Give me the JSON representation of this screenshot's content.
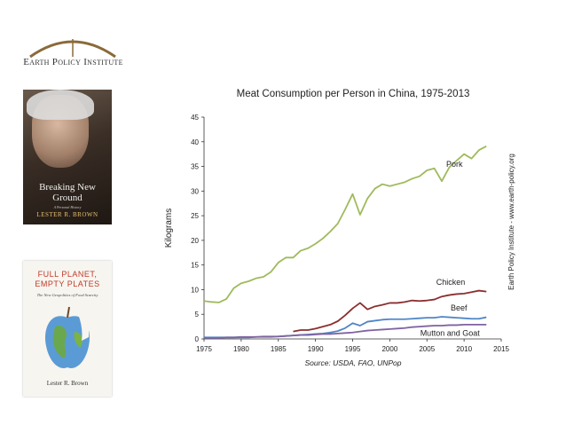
{
  "logo": {
    "text": "Earth Policy Institute"
  },
  "books": [
    {
      "title": "Breaking New Ground",
      "subtitle": "A Personal History",
      "author": "LESTER R. BROWN"
    },
    {
      "title": "FULL PLANET, EMPTY PLATES",
      "subtitle": "The New Geopolitics of Food Scarcity",
      "author": "Lester R. Brown"
    }
  ],
  "chart_data": {
    "type": "line",
    "title": "Meat Consumption per Person in China, 1975-2013",
    "ylabel": "Kilograms",
    "source": "Source: USDA, FAO, UNPop",
    "side_note": "Earth Policy Institute - www.earth-policy.org",
    "x": [
      1975,
      1976,
      1977,
      1978,
      1979,
      1980,
      1981,
      1982,
      1983,
      1984,
      1985,
      1986,
      1987,
      1988,
      1989,
      1990,
      1991,
      1992,
      1993,
      1994,
      1995,
      1996,
      1997,
      1998,
      1999,
      2000,
      2001,
      2002,
      2003,
      2004,
      2005,
      2006,
      2007,
      2008,
      2009,
      2010,
      2011,
      2012,
      2013
    ],
    "series": [
      {
        "name": "Pork",
        "color": "#9fba5c",
        "values": [
          7.7,
          7.5,
          7.4,
          8.1,
          10.3,
          11.3,
          11.7,
          12.3,
          12.6,
          13.6,
          15.5,
          16.5,
          16.5,
          17.9,
          18.4,
          19.3,
          20.4,
          21.8,
          23.4,
          26.3,
          29.4,
          25.2,
          28.5,
          30.5,
          31.4,
          31.0,
          31.4,
          31.8,
          32.5,
          33.0,
          34.2,
          34.6,
          32.0,
          34.8,
          36.2,
          37.5,
          36.6,
          38.3,
          39.1
        ]
      },
      {
        "name": "Chicken",
        "color": "#8b2e2e",
        "values": [
          null,
          null,
          null,
          null,
          null,
          null,
          null,
          null,
          null,
          null,
          null,
          null,
          1.5,
          1.8,
          1.8,
          2.1,
          2.5,
          2.9,
          3.6,
          4.8,
          6.2,
          7.3,
          6.0,
          6.6,
          6.9,
          7.3,
          7.3,
          7.5,
          7.8,
          7.7,
          7.8,
          8.0,
          8.6,
          8.9,
          9.1,
          9.2,
          9.5,
          9.8,
          9.6
        ]
      },
      {
        "name": "Beef",
        "color": "#4f86c6",
        "values": [
          0.3,
          0.3,
          0.3,
          0.3,
          0.3,
          0.3,
          0.3,
          0.4,
          0.4,
          0.4,
          0.5,
          0.6,
          0.7,
          0.8,
          0.9,
          1.0,
          1.1,
          1.3,
          1.6,
          2.2,
          3.2,
          2.7,
          3.5,
          3.7,
          3.9,
          4.0,
          4.0,
          4.0,
          4.1,
          4.2,
          4.3,
          4.3,
          4.5,
          4.4,
          4.3,
          4.2,
          4.1,
          4.1,
          4.4
        ]
      },
      {
        "name": "Mutton and Goat",
        "color": "#7f63a1",
        "values": [
          0.2,
          0.2,
          0.2,
          0.3,
          0.3,
          0.4,
          0.4,
          0.4,
          0.5,
          0.5,
          0.5,
          0.6,
          0.7,
          0.8,
          0.8,
          0.9,
          1.0,
          1.0,
          1.1,
          1.2,
          1.3,
          1.5,
          1.7,
          1.8,
          1.9,
          2.0,
          2.1,
          2.2,
          2.4,
          2.5,
          2.6,
          2.7,
          2.7,
          2.8,
          2.8,
          2.9,
          2.9,
          2.9,
          2.9
        ]
      }
    ],
    "xlim": [
      1975,
      2015
    ],
    "xticks": [
      1975,
      1980,
      1985,
      1990,
      1995,
      2000,
      2005,
      2010,
      2015
    ],
    "ylim": [
      0,
      45
    ],
    "yticks": [
      0,
      5,
      10,
      15,
      20,
      25,
      30,
      35,
      40,
      45
    ],
    "grid": false
  }
}
